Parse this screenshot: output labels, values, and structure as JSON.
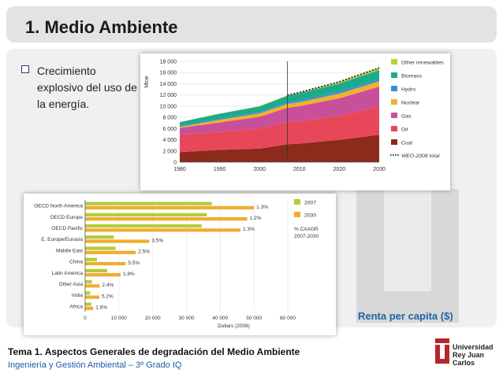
{
  "slide": {
    "title": "1. Medio Ambiente",
    "bullet": "Crecimiento explosivo del uso de la energía.",
    "caption": "Renta per capita ($)",
    "footer_title": "Tema 1. Aspectos Generales de degradación del Medio Ambiente",
    "footer_subtitle": "Ingeniería y Gestión Ambiental – 3º Grado IQ",
    "logo_text_1": "Universidad",
    "logo_text_2": "Rey Juan Carlos"
  },
  "colors": {
    "title_bg": "#e3e3e3",
    "content_bg": "#f0f0f0",
    "accent_blue": "#2063a8",
    "logo_red": "#b5252b"
  },
  "chart_data": [
    {
      "type": "area",
      "ylabel": "Mtoe",
      "x": [
        1980,
        1990,
        2000,
        2007,
        2010,
        2020,
        2030
      ],
      "xticks": [
        "1980",
        "1990",
        "2000",
        "2010",
        "2020",
        "2030"
      ],
      "yticks": [
        "0",
        "2 000",
        "4 000",
        "6 000",
        "8 000",
        "10 000",
        "12 000",
        "14 000",
        "16 000",
        "18 000"
      ],
      "ylim": [
        0,
        18000
      ],
      "marker_x": 2007,
      "series": [
        {
          "name": "Coal",
          "color": "#8c2a1c",
          "values": [
            1800,
            2200,
            2400,
            3200,
            3300,
            4000,
            4900
          ]
        },
        {
          "name": "Oil",
          "color": "#e8475a",
          "values": [
            3100,
            3200,
            3600,
            4000,
            4000,
            4300,
            5000
          ]
        },
        {
          "name": "Gas",
          "color": "#c8509a",
          "values": [
            1200,
            1700,
            2100,
            2500,
            2700,
            3100,
            3600
          ]
        },
        {
          "name": "Nuclear",
          "color": "#f2b02c",
          "values": [
            200,
            450,
            600,
            700,
            700,
            850,
            950
          ]
        },
        {
          "name": "Hydro",
          "color": "#3d8fd4",
          "values": [
            150,
            200,
            250,
            250,
            300,
            350,
            400
          ]
        },
        {
          "name": "Biomass",
          "color": "#1aab8c",
          "values": [
            700,
            900,
            1000,
            1200,
            1300,
            1450,
            1600
          ]
        },
        {
          "name": "Other renewables",
          "color": "#b6d433",
          "values": [
            20,
            40,
            60,
            100,
            150,
            300,
            400
          ]
        }
      ],
      "total_line": {
        "name": "WEO-2008 total",
        "from": 2007,
        "values": [
          11950,
          12450,
          14350,
          16850
        ]
      }
    },
    {
      "type": "bar",
      "categories": [
        "OECD North America",
        "OECD Europe",
        "OECD Pacific",
        "E. Europe/Eurasia",
        "Middle East",
        "China",
        "Latin America",
        "Other Asia",
        "India",
        "Africa"
      ],
      "series": [
        {
          "name": "2007",
          "color": "#b2cc3a",
          "values": [
            37500,
            36000,
            34500,
            8500,
            9000,
            3500,
            6500,
            2000,
            1500,
            1800
          ]
        },
        {
          "name": "2030",
          "color": "#f0ad2c",
          "values": [
            50000,
            48000,
            46000,
            19000,
            15000,
            12000,
            10500,
            4300,
            4200,
            2400
          ]
        }
      ],
      "annotations": [
        "1.3%",
        "1.2%",
        "1.3%",
        "3.5%",
        "2.5%",
        "5.5%",
        "1.8%",
        "2.4%",
        "5.2%",
        "1.6%"
      ],
      "legend_note": [
        "% CAAGR",
        "2007-2030"
      ],
      "xticks": [
        "0",
        "10 000",
        "20 000",
        "30 000",
        "40 000",
        "50 000",
        "60 000"
      ],
      "xlim": [
        0,
        60000
      ],
      "xlabel": "Dollars (2008)"
    }
  ]
}
